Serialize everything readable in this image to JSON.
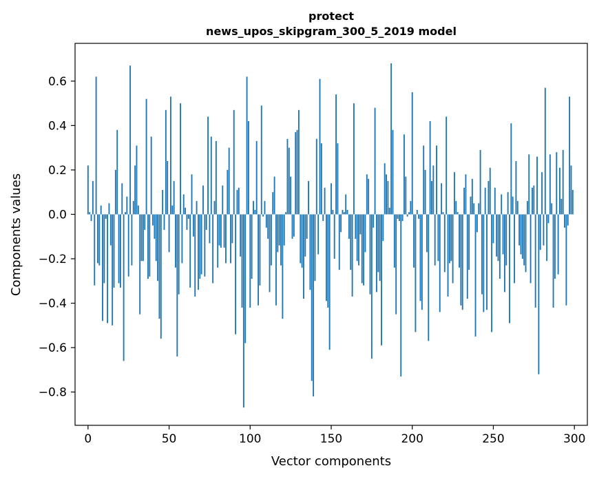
{
  "chart_data": {
    "type": "bar",
    "title": "protect",
    "subtitle": "news_upos_skipgram_300_5_2019 model",
    "xlabel": "Vector components",
    "ylabel": "Components values",
    "xlim": [
      -8,
      308
    ],
    "ylim": [
      -0.95,
      0.77
    ],
    "xticks": [
      0,
      50,
      100,
      150,
      200,
      250,
      300
    ],
    "xtick_labels": [
      "0",
      "50",
      "100",
      "150",
      "200",
      "250",
      "300"
    ],
    "yticks": [
      -0.8,
      -0.6,
      -0.4,
      -0.2,
      0.0,
      0.2,
      0.4,
      0.6
    ],
    "ytick_labels": [
      "−0.8",
      "−0.6",
      "−0.4",
      "−0.2",
      "0.0",
      "0.2",
      "0.4",
      "0.6"
    ],
    "bar_color": "#1f77b4",
    "grid": false,
    "series": [
      {
        "name": "protect",
        "values": [
          0.22,
          0.01,
          -0.03,
          0.15,
          -0.32,
          0.62,
          -0.22,
          -0.23,
          0.04,
          -0.48,
          -0.31,
          -0.02,
          -0.49,
          0.05,
          -0.14,
          -0.5,
          -0.33,
          0.2,
          0.38,
          -0.31,
          -0.33,
          0.14,
          -0.66,
          0.01,
          0.08,
          -0.28,
          0.67,
          -0.23,
          0.06,
          0.22,
          0.31,
          0.04,
          -0.45,
          -0.21,
          -0.21,
          -0.07,
          0.52,
          -0.29,
          -0.28,
          0.35,
          -0.05,
          -0.11,
          -0.21,
          -0.3,
          -0.47,
          -0.56,
          0.11,
          -0.07,
          0.47,
          0.24,
          -0.17,
          0.53,
          0.04,
          0.15,
          -0.24,
          -0.64,
          -0.36,
          0.5,
          -0.22,
          0.09,
          0.03,
          -0.07,
          -0.02,
          -0.33,
          0.18,
          -0.1,
          -0.37,
          0.06,
          -0.34,
          -0.29,
          -0.27,
          0.13,
          -0.28,
          -0.07,
          0.44,
          -0.13,
          0.35,
          -0.31,
          0.06,
          0.33,
          -0.24,
          -0.14,
          -0.15,
          0.13,
          -0.15,
          -0.22,
          0.2,
          0.3,
          -0.22,
          -0.13,
          0.47,
          -0.54,
          0.11,
          0.12,
          -0.19,
          -0.42,
          -0.87,
          -0.58,
          0.62,
          0.42,
          -0.42,
          -0.29,
          0.06,
          0.02,
          0.33,
          -0.41,
          -0.32,
          0.49,
          -0.01,
          0.06,
          -0.06,
          -0.11,
          -0.35,
          -0.23,
          0.1,
          0.17,
          -0.41,
          -0.17,
          -0.14,
          -0.23,
          -0.47,
          -0.14,
          0.01,
          0.34,
          0.3,
          0.17,
          -0.11,
          -0.1,
          0.37,
          0.38,
          0.47,
          -0.22,
          -0.24,
          -0.38,
          -0.19,
          -0.11,
          0.15,
          -0.34,
          -0.75,
          -0.82,
          -0.3,
          0.34,
          -0.18,
          0.61,
          0.32,
          -0.03,
          0.12,
          -0.39,
          -0.42,
          -0.61,
          0.14,
          0.02,
          -0.2,
          0.54,
          0.32,
          -0.25,
          -0.08,
          0.02,
          0.01,
          0.09,
          0.02,
          -0.11,
          -0.25,
          -0.37,
          0.5,
          -0.11,
          -0.21,
          -0.23,
          -0.09,
          -0.31,
          -0.32,
          -0.17,
          0.18,
          0.16,
          -0.36,
          -0.65,
          -0.06,
          0.48,
          -0.35,
          -0.26,
          -0.3,
          -0.59,
          -0.12,
          0.23,
          0.18,
          0.15,
          0.03,
          0.68,
          0.38,
          -0.24,
          -0.45,
          -0.02,
          -0.03,
          -0.73,
          -0.03,
          0.36,
          0.17,
          -0.01,
          0.01,
          0.06,
          0.55,
          -0.24,
          -0.53,
          0.02,
          -0.02,
          -0.39,
          -0.43,
          0.31,
          0.2,
          -0.17,
          -0.57,
          0.42,
          0.15,
          0.22,
          -0.23,
          0.31,
          -0.21,
          -0.44,
          0.14,
          0.01,
          -0.26,
          0.44,
          -0.37,
          -0.22,
          -0.21,
          -0.31,
          0.19,
          0.06,
          0.01,
          -0.24,
          -0.41,
          -0.43,
          0.12,
          0.18,
          -0.38,
          -0.25,
          0.08,
          0.16,
          0.05,
          -0.55,
          -0.08,
          0.05,
          0.29,
          -0.36,
          -0.44,
          0.12,
          -0.43,
          0.15,
          0.21,
          -0.53,
          -0.13,
          0.12,
          -0.19,
          -0.21,
          -0.29,
          0.09,
          -0.18,
          -0.35,
          -0.23,
          0.1,
          -0.49,
          0.41,
          0.08,
          -0.31,
          0.24,
          0.06,
          -0.14,
          -0.18,
          -0.2,
          -0.23,
          -0.26,
          0.06,
          0.27,
          -0.31,
          0.12,
          0.13,
          -0.42,
          0.26,
          -0.72,
          -0.16,
          0.19,
          -0.14,
          0.57,
          -0.21,
          -0.04,
          0.27,
          0.05,
          -0.42,
          -0.29,
          0.28,
          -0.27,
          0.21,
          0.07,
          0.29,
          -0.06,
          -0.41,
          -0.05,
          0.53,
          0.22,
          0.11
        ]
      }
    ]
  }
}
